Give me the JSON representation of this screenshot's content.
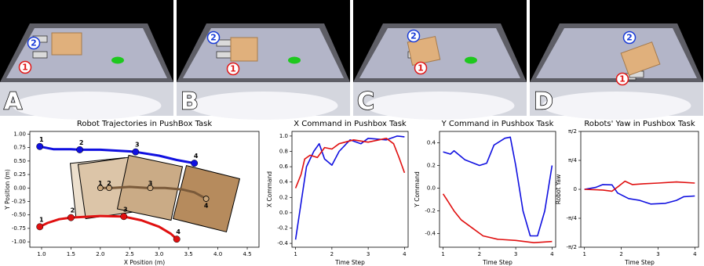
{
  "panels": [
    {
      "letter": "A",
      "robot_labels": [
        "2",
        "1"
      ]
    },
    {
      "letter": "B",
      "robot_labels": [
        "2",
        "1"
      ]
    },
    {
      "letter": "C",
      "robot_labels": [
        "2",
        "1"
      ]
    },
    {
      "letter": "D",
      "robot_labels": [
        "2",
        "1"
      ]
    }
  ],
  "chart_data": [
    {
      "type": "line",
      "title": "Robot Trajectories in PushBox Task",
      "xlabel": "X Position (m)",
      "ylabel": "Y Position (m)",
      "xlim": [
        0.8,
        4.7
      ],
      "ylim": [
        -1.1,
        1.05
      ],
      "xticks": [
        {
          "value": 1,
          "label": "1.0"
        },
        1.5,
        {
          "value": 2,
          "label": "2.0"
        },
        2.5,
        {
          "value": 3,
          "label": "3.0"
        },
        3.5,
        {
          "value": 4,
          "label": "4.0"
        },
        4.5
      ],
      "yticks": [
        {
          "value": -1,
          "label": "-1.00"
        },
        {
          "value": -0.75,
          "label": "-0.75"
        },
        {
          "value": -0.5,
          "label": "-0.50"
        },
        {
          "value": -0.25,
          "label": "-0.25"
        },
        {
          "value": 0,
          "label": "0.00"
        },
        {
          "value": 0.25,
          "label": "0.25"
        },
        {
          "value": 0.5,
          "label": "0.50"
        },
        {
          "value": 0.75,
          "label": "0.75"
        },
        {
          "value": 1,
          "label": "1.00"
        }
      ],
      "series": [
        {
          "color": "#1010e0",
          "x": [
            0.97,
            1.2,
            1.5,
            1.65,
            2.0,
            2.5,
            2.6,
            3.0,
            3.3,
            3.6
          ],
          "values": [
            0.77,
            0.72,
            0.72,
            0.71,
            0.71,
            0.68,
            0.67,
            0.6,
            0.52,
            0.46
          ],
          "markers": {
            "x": [
              0.97,
              1.65,
              2.6,
              3.6
            ],
            "values": [
              0.77,
              0.71,
              0.67,
              0.46
            ],
            "labels": [
              "1",
              "2",
              "3",
              "4"
            ]
          }
        },
        {
          "color": "#e01010",
          "x": [
            0.97,
            1.1,
            1.3,
            1.5,
            2.0,
            2.4,
            2.7,
            3.0,
            3.2,
            3.3
          ],
          "values": [
            -0.72,
            -0.65,
            -0.58,
            -0.55,
            -0.52,
            -0.53,
            -0.6,
            -0.72,
            -0.85,
            -0.95
          ],
          "markers": {
            "x": [
              0.97,
              1.5,
              2.4,
              3.3
            ],
            "values": [
              -0.72,
              -0.55,
              -0.53,
              -0.95
            ],
            "labels": [
              "1",
              "2",
              "3",
              "4"
            ]
          }
        },
        {
          "color": "#7a5a3a",
          "x": [
            2.0,
            2.2,
            2.5,
            2.8,
            3.1,
            3.4,
            3.6,
            3.8
          ],
          "values": [
            0.0,
            0.0,
            0.02,
            0.0,
            0.0,
            -0.03,
            -0.08,
            -0.2
          ],
          "markers": {
            "x": [
              2.0,
              2.15,
              2.85,
              3.8
            ],
            "values": [
              0.0,
              0.0,
              0.0,
              -0.2
            ],
            "labels": [
              "1",
              "2",
              "3",
              "4"
            ]
          }
        }
      ]
    },
    {
      "type": "line",
      "title": "X Command in Pushbox Task",
      "xlabel": "Time Step",
      "ylabel": "X Command",
      "xlim": [
        0.9,
        4.1
      ],
      "ylim": [
        -0.45,
        1.06
      ],
      "xticks": [
        1,
        2,
        3,
        4
      ],
      "yticks": [
        -0.4,
        -0.2,
        {
          "value": 0,
          "label": "0.0"
        },
        0.2,
        0.4,
        0.6,
        0.8,
        {
          "value": 1,
          "label": "1.0"
        }
      ],
      "series": [
        {
          "color": "#1010e0",
          "x": [
            1.0,
            1.3,
            1.5,
            1.65,
            1.8,
            2.0,
            2.2,
            2.5,
            2.8,
            3.0,
            3.5,
            3.8,
            4.0
          ],
          "values": [
            -0.35,
            0.6,
            0.8,
            0.9,
            0.7,
            0.62,
            0.8,
            0.95,
            0.9,
            0.97,
            0.95,
            1.0,
            0.99
          ]
        },
        {
          "color": "#e01010",
          "x": [
            1.0,
            1.15,
            1.25,
            1.4,
            1.6,
            1.8,
            2.0,
            2.2,
            2.6,
            3.0,
            3.5,
            3.7,
            3.85,
            4.0
          ],
          "values": [
            0.32,
            0.5,
            0.7,
            0.75,
            0.72,
            0.85,
            0.83,
            0.9,
            0.95,
            0.92,
            0.97,
            0.9,
            0.72,
            0.52
          ]
        }
      ]
    },
    {
      "type": "line",
      "title": "Y Command in Pushbox Task",
      "xlabel": "Time Step",
      "ylabel": "Y Command",
      "xlim": [
        0.9,
        4.1
      ],
      "ylim": [
        -0.52,
        0.5
      ],
      "xticks": [
        1,
        2,
        3,
        4
      ],
      "yticks": [
        -0.4,
        -0.2,
        {
          "value": 0,
          "label": "0.0"
        },
        0.2,
        0.4
      ],
      "series": [
        {
          "color": "#1010e0",
          "x": [
            1.0,
            1.2,
            1.3,
            1.6,
            2.0,
            2.2,
            2.4,
            2.7,
            2.85,
            3.0,
            3.2,
            3.4,
            3.6,
            3.8,
            4.0
          ],
          "values": [
            0.32,
            0.3,
            0.33,
            0.25,
            0.2,
            0.22,
            0.38,
            0.44,
            0.45,
            0.2,
            -0.2,
            -0.42,
            -0.42,
            -0.2,
            0.2
          ]
        },
        {
          "color": "#e01010",
          "x": [
            1.0,
            1.1,
            1.3,
            1.5,
            1.8,
            2.1,
            2.5,
            3.0,
            3.5,
            4.0
          ],
          "values": [
            -0.05,
            -0.1,
            -0.2,
            -0.28,
            -0.35,
            -0.42,
            -0.45,
            -0.46,
            -0.48,
            -0.47
          ]
        }
      ]
    },
    {
      "type": "line",
      "title": "Robots' Yaw in Pushbox Task",
      "xlabel": "Time Step",
      "ylabel": "Robot Yaw",
      "xlim": [
        0.9,
        4.1
      ],
      "ylim": [
        -1.5708,
        1.5708
      ],
      "xticks": [
        1,
        2,
        3,
        4
      ],
      "yticks": [
        {
          "value": -1.5708,
          "label": "-π/2"
        },
        {
          "value": -0.7854,
          "label": "-π/4"
        },
        0,
        {
          "value": 0.7854,
          "label": "π/4"
        },
        {
          "value": 1.5708,
          "label": "π/2"
        }
      ],
      "series": [
        {
          "color": "#1010e0",
          "x": [
            1.0,
            1.3,
            1.5,
            1.75,
            1.9,
            2.2,
            2.5,
            2.8,
            3.2,
            3.5,
            3.7,
            4.0
          ],
          "values": [
            0.0,
            0.05,
            0.13,
            0.12,
            -0.1,
            -0.25,
            -0.3,
            -0.4,
            -0.38,
            -0.3,
            -0.2,
            -0.18
          ]
        },
        {
          "color": "#e01010",
          "x": [
            1.0,
            1.5,
            1.75,
            1.95,
            2.1,
            2.3,
            2.6,
            3.0,
            3.5,
            4.0
          ],
          "values": [
            0.0,
            -0.02,
            -0.05,
            0.1,
            0.22,
            0.13,
            0.15,
            0.17,
            0.2,
            0.17
          ]
        }
      ]
    }
  ]
}
